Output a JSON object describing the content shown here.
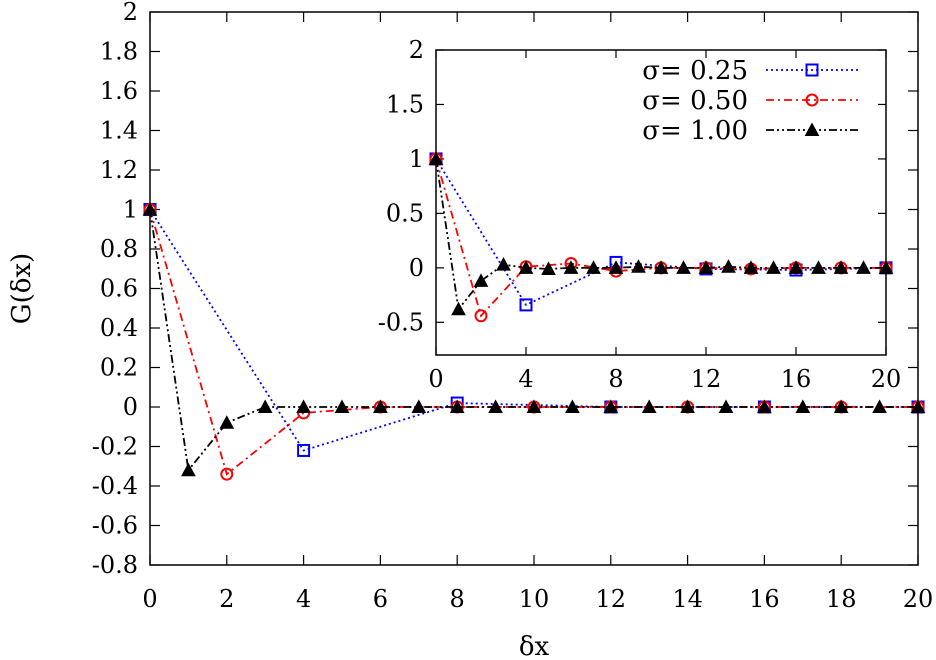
{
  "chart_data": [
    {
      "type": "line",
      "xlabel": "δx",
      "ylabel": "G(δx)",
      "xlim": [
        0,
        20
      ],
      "ylim": [
        -0.8,
        2
      ],
      "xticks": [
        "0",
        "2",
        "4",
        "6",
        "8",
        "10",
        "12",
        "14",
        "16",
        "18",
        "20"
      ],
      "yticks": [
        "-0.8",
        "-0.6",
        "-0.4",
        "-0.2",
        "0",
        "0.2",
        "0.4",
        "0.6",
        "0.8",
        "1",
        "1.2",
        "1.4",
        "1.6",
        "1.8",
        "2"
      ],
      "series": [
        {
          "name": "σ= 0.25",
          "color": "#0000ff",
          "dash": "dotted",
          "marker": "square",
          "x": [
            0,
            4,
            8,
            12,
            16,
            20
          ],
          "y": [
            1.0,
            -0.22,
            0.02,
            0.0,
            0.0,
            0.0
          ]
        },
        {
          "name": "σ= 0.50",
          "color": "#ff0000",
          "dash": "dashdot",
          "marker": "circle",
          "x": [
            0,
            2,
            4,
            6,
            8,
            10,
            12,
            14,
            16,
            18,
            20
          ],
          "y": [
            1.0,
            -0.34,
            -0.03,
            0.0,
            0.0,
            0.0,
            0.0,
            0.0,
            0.0,
            0.0,
            0.0
          ]
        },
        {
          "name": "σ= 1.00",
          "color": "#000000",
          "dash": "dashdotdot",
          "marker": "triangle",
          "x": [
            0,
            1,
            2,
            3,
            4,
            5,
            6,
            7,
            8,
            9,
            10,
            11,
            12,
            13,
            14,
            15,
            16,
            17,
            18,
            19,
            20
          ],
          "y": [
            1.0,
            -0.32,
            -0.08,
            0.0,
            0.0,
            0.0,
            0.0,
            0.0,
            0.0,
            0.0,
            0.0,
            0.0,
            0.0,
            0.0,
            0.0,
            0.0,
            0.0,
            0.0,
            0.0,
            0.0,
            0.0
          ]
        }
      ]
    },
    {
      "type": "line",
      "xlim": [
        0,
        20
      ],
      "ylim": [
        -0.8,
        2
      ],
      "xticks": [
        "0",
        "4",
        "8",
        "12",
        "16",
        "20"
      ],
      "yticks": [
        "-0.5",
        "0",
        "0.5",
        "1",
        "1.5",
        "2"
      ],
      "legend_position": "top-right",
      "series": [
        {
          "name": "σ= 0.25",
          "color": "#0000ff",
          "dash": "dotted",
          "marker": "square",
          "x": [
            0,
            4,
            8,
            12,
            16,
            20
          ],
          "y": [
            1.0,
            -0.34,
            0.05,
            -0.01,
            -0.02,
            0.0
          ]
        },
        {
          "name": "σ= 0.50",
          "color": "#ff0000",
          "dash": "dashdot",
          "marker": "circle",
          "x": [
            0,
            2,
            4,
            6,
            8,
            10,
            12,
            14,
            16,
            18,
            20
          ],
          "y": [
            1.0,
            -0.44,
            0.01,
            0.04,
            -0.03,
            0.0,
            0.0,
            -0.01,
            0.0,
            0.0,
            0.0
          ]
        },
        {
          "name": "σ= 1.00",
          "color": "#000000",
          "dash": "dashdotdot",
          "marker": "triangle",
          "x": [
            0,
            1,
            2,
            3,
            4,
            5,
            6,
            7,
            8,
            9,
            10,
            11,
            12,
            13,
            14,
            15,
            16,
            17,
            18,
            19,
            20
          ],
          "y": [
            1.0,
            -0.38,
            -0.12,
            0.03,
            0.0,
            -0.01,
            0.0,
            0.0,
            0.0,
            0.01,
            0.0,
            0.0,
            0.0,
            0.01,
            0.0,
            0.0,
            0.0,
            0.0,
            0.0,
            0.0,
            0.0
          ]
        }
      ]
    }
  ]
}
